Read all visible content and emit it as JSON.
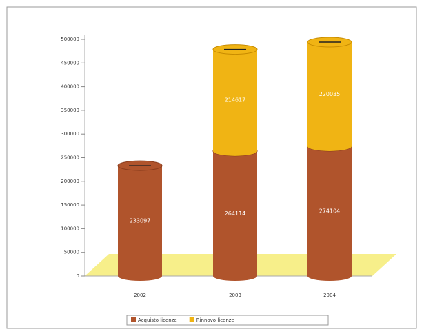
{
  "chart_data": {
    "type": "bar",
    "stacked": true,
    "categories": [
      "2002",
      "2003",
      "2004"
    ],
    "series": [
      {
        "name": "Acquisto licenze",
        "color": "#b0542c",
        "values": [
          233097,
          264114,
          274104
        ]
      },
      {
        "name": "Rinnovo licenze",
        "color": "#f0b414",
        "values": [
          null,
          214617,
          220035
        ]
      }
    ],
    "ylim": [
      0,
      500000
    ],
    "yticks": [
      0,
      50000,
      100000,
      150000,
      200000,
      250000,
      300000,
      350000,
      400000,
      450000,
      500000
    ],
    "legend": "bottom"
  }
}
